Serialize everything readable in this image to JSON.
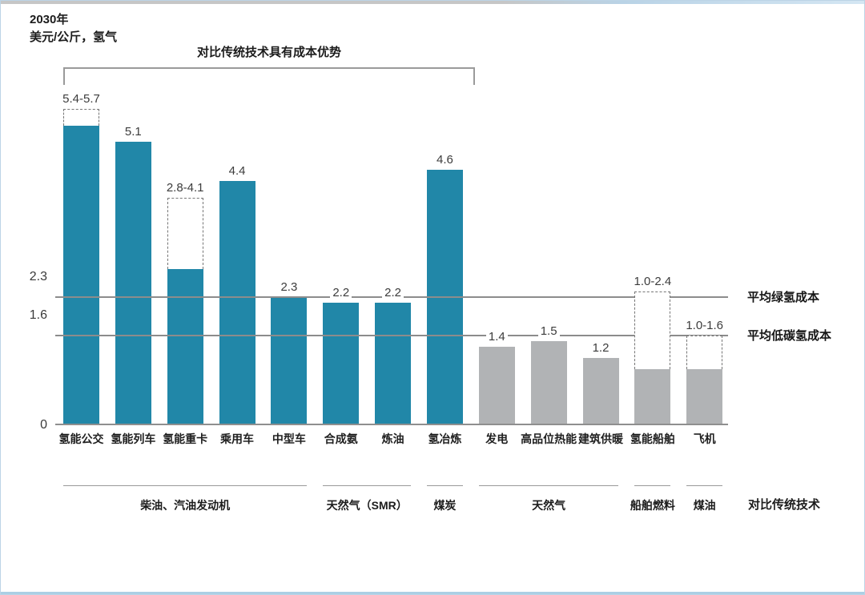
{
  "page": {
    "title_line1": "2030年",
    "title_line2": "美元/公斤，氢气",
    "bottom_right_label": "对比传统技术"
  },
  "chart_data": {
    "type": "bar",
    "title": "2030年",
    "ylabel": "美元/公斤，氢气",
    "ylim": [
      0,
      5.9
    ],
    "yticks": [
      0,
      1.6,
      2.3
    ],
    "grid": false,
    "legend_position": "none",
    "bracket": {
      "label": "对比传统技术具有成本优势",
      "from": 0,
      "to": 7
    },
    "bars": [
      {
        "label": "氢能公交",
        "value_label": "5.4-5.7",
        "min": 5.4,
        "max": 5.7,
        "color": "teal"
      },
      {
        "label": "氢能列车",
        "value_label": "5.1",
        "min": 5.1,
        "max": 5.1,
        "color": "teal"
      },
      {
        "label": "氢能重卡",
        "value_label": "2.8-4.1",
        "min": 2.8,
        "max": 4.1,
        "color": "teal"
      },
      {
        "label": "乘用车",
        "value_label": "4.4",
        "min": 4.4,
        "max": 4.4,
        "color": "teal"
      },
      {
        "label": "中型车",
        "value_label": "2.3",
        "min": 2.3,
        "max": 2.3,
        "color": "teal"
      },
      {
        "label": "合成氨",
        "value_label": "2.2",
        "min": 2.2,
        "max": 2.2,
        "color": "teal"
      },
      {
        "label": "炼油",
        "value_label": "2.2",
        "min": 2.2,
        "max": 2.2,
        "color": "teal"
      },
      {
        "label": "氢冶炼",
        "value_label": "4.6",
        "min": 4.6,
        "max": 4.6,
        "color": "teal"
      },
      {
        "label": "发电",
        "value_label": "1.4",
        "min": 1.4,
        "max": 1.4,
        "color": "gray"
      },
      {
        "label": "高品位热能",
        "value_label": "1.5",
        "min": 1.5,
        "max": 1.5,
        "color": "gray"
      },
      {
        "label": "建筑供暖",
        "value_label": "1.2",
        "min": 1.2,
        "max": 1.2,
        "color": "gray"
      },
      {
        "label": "氢能船舶",
        "value_label": "1.0-2.4",
        "min": 1.0,
        "max": 2.4,
        "color": "gray"
      },
      {
        "label": "飞机",
        "value_label": "1.0-1.6",
        "min": 1.0,
        "max": 1.6,
        "color": "gray"
      }
    ],
    "reference_lines": [
      {
        "value": 2.3,
        "label": "平均绿氢成本"
      },
      {
        "value": 1.6,
        "label": "平均低碳氢成本"
      }
    ],
    "groups": [
      {
        "label": "柴油、汽油发动机",
        "from": 0,
        "to": 4
      },
      {
        "label": "天然气（SMR）",
        "from": 5,
        "to": 6
      },
      {
        "label": "煤炭",
        "from": 7,
        "to": 7
      },
      {
        "label": "天然气",
        "from": 8,
        "to": 10
      },
      {
        "label": "船舶燃料",
        "from": 11,
        "to": 11
      },
      {
        "label": "煤油",
        "from": 12,
        "to": 12
      }
    ],
    "colors": {
      "teal": "#2187a8",
      "gray": "#b1b3b5",
      "reference_line": "#8c8c8c",
      "axis": "#8f8f8f",
      "dashed_box_border": "#767676"
    }
  }
}
